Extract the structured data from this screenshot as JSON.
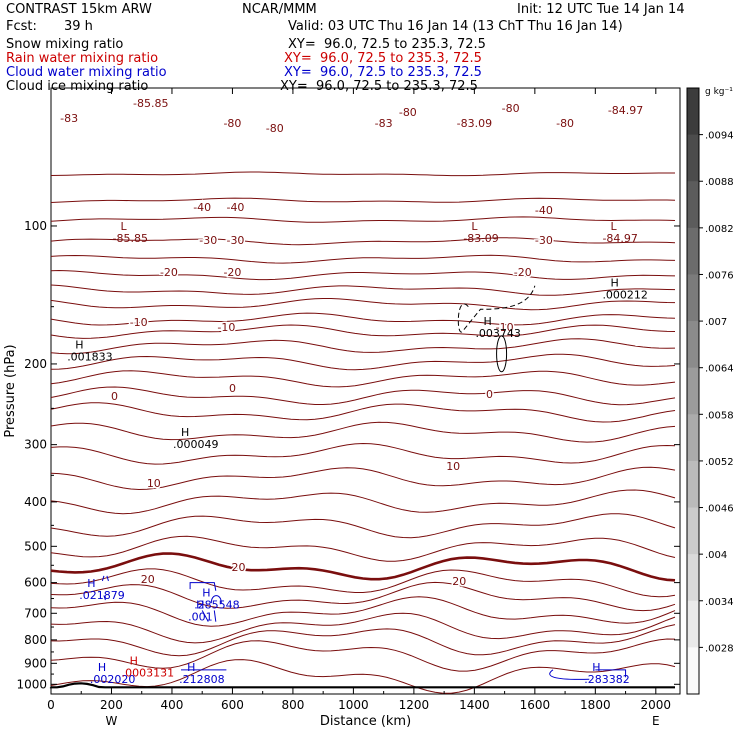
{
  "header": {
    "model": "CONTRAST 15km ARW",
    "center": "NCAR/MMM",
    "init": "Init: 12 UTC Tue 14 Jan 14",
    "fcst_label": "Fcst:",
    "fcst_value": "39 h",
    "valid": "Valid: 03 UTC Thu 16 Jan 14 (13 ChT Thu 16 Jan 14)"
  },
  "fields": [
    {
      "name": "Snow mixing ratio",
      "xy": "XY=  96.0, 72.5 to 235.3, 72.5",
      "color": "#000000"
    },
    {
      "name": "Rain water mixing ratio",
      "xy": "XY=  96.0, 72.5 to 235.3, 72.5",
      "color": "#cc0000"
    },
    {
      "name": "Cloud water mixing ratio",
      "xy": "XY=  96.0, 72.5 to 235.3, 72.5",
      "color": "#0000cc"
    },
    {
      "name": "Cloud ice mixing ratio",
      "xy": "XY=  96.0, 72.5 to 235.3, 72.5",
      "color": "#000000"
    }
  ],
  "colors": {
    "temperature": "#7a0e0e",
    "temperature_zero": "#7a0e0e",
    "snow": "#000000",
    "rain": "#cc0000",
    "cloud_water": "#0000cc",
    "cloud_ice": "#000000",
    "terrain": "#000000"
  },
  "chart_data": {
    "type": "line",
    "xlabel": "Distance (km)",
    "ylabel": "Pressure (hPa)",
    "xlim": [
      0,
      2080
    ],
    "ylim": [
      1050,
      50
    ],
    "y_scale": "log",
    "x_ticks": [
      0,
      200,
      400,
      600,
      800,
      1000,
      1200,
      1400,
      1600,
      1800,
      2000
    ],
    "y_ticks": [
      100,
      200,
      300,
      400,
      500,
      600,
      700,
      800,
      900,
      1000
    ],
    "x_end_labels": {
      "left": "W",
      "right": "E"
    },
    "colorbar": {
      "unit": "g kg⁻¹",
      "ticks": [
        ".0094",
        ".0088",
        ".0082",
        ".0076",
        ".007",
        ".0064",
        ".0058",
        ".0052",
        ".0046",
        ".004",
        ".0034",
        ".0028"
      ]
    },
    "temperature_contours": [
      {
        "value": -80,
        "labels": [
          "-83",
          "-85.85",
          "-80",
          "-80",
          "-83",
          "-80",
          "-83.09",
          "-80",
          "-80",
          "-84.97"
        ]
      },
      {
        "value": -40,
        "labels": [
          "-40",
          "-40",
          "-40"
        ]
      },
      {
        "value": -30,
        "labels": [
          "-30",
          "-30"
        ]
      },
      {
        "value": -20,
        "labels": [
          "-20",
          "-20",
          "-20"
        ]
      },
      {
        "value": -10,
        "labels": [
          "-10",
          "-10",
          "-10"
        ]
      },
      {
        "value": 0,
        "labels": [
          "0",
          "0",
          "0"
        ]
      },
      {
        "value": 10,
        "labels": [
          "10",
          "10"
        ]
      },
      {
        "value": 20,
        "labels": [
          "20",
          "20",
          "20"
        ]
      }
    ],
    "temperature_lines_p": [
      77,
      88,
      97,
      108,
      118,
      128,
      138,
      148,
      160,
      170,
      183,
      198,
      215,
      235,
      255,
      282,
      315,
      355,
      400,
      450,
      505,
      555,
      600,
      645,
      695,
      750,
      800,
      860,
      960
    ],
    "extrema": [
      {
        "kind": "L",
        "value": "-85.85",
        "x": 230,
        "p": 103,
        "field": "temperature"
      },
      {
        "kind": "L",
        "value": "-83.09",
        "x": 1390,
        "p": 103,
        "field": "temperature"
      },
      {
        "kind": "L",
        "value": "-84.97",
        "x": 1850,
        "p": 103,
        "field": "temperature"
      },
      {
        "kind": "H",
        "value": ".001833",
        "x": 80,
        "p": 187,
        "field": "cloud_ice"
      },
      {
        "kind": "H",
        "value": ".000049",
        "x": 430,
        "p": 290,
        "field": "cloud_ice"
      },
      {
        "kind": "H",
        "value": ".003743",
        "x": 1430,
        "p": 166,
        "field": "cloud_ice"
      },
      {
        "kind": "H",
        "value": ".000212",
        "x": 1850,
        "p": 137,
        "field": "cloud_ice"
      },
      {
        "kind": "H",
        "value": ".021879",
        "x": 120,
        "p": 620,
        "field": "cloud_water"
      },
      {
        "kind": "H",
        "value": ".285548",
        "x": 500,
        "p": 650,
        "field": "cloud_water"
      },
      {
        "kind": "H",
        "value": ".001",
        "x": 480,
        "p": 690,
        "field": "cloud_water"
      },
      {
        "kind": "H",
        "value": ".002020",
        "x": 155,
        "p": 945,
        "field": "cloud_water"
      },
      {
        "kind": "H",
        "value": ".212808",
        "x": 450,
        "p": 945,
        "field": "cloud_water"
      },
      {
        "kind": "H",
        "value": ".283382",
        "x": 1790,
        "p": 945,
        "field": "cloud_water"
      },
      {
        "kind": "H",
        "value": ".0003131",
        "x": 260,
        "p": 915,
        "field": "rain"
      }
    ]
  }
}
